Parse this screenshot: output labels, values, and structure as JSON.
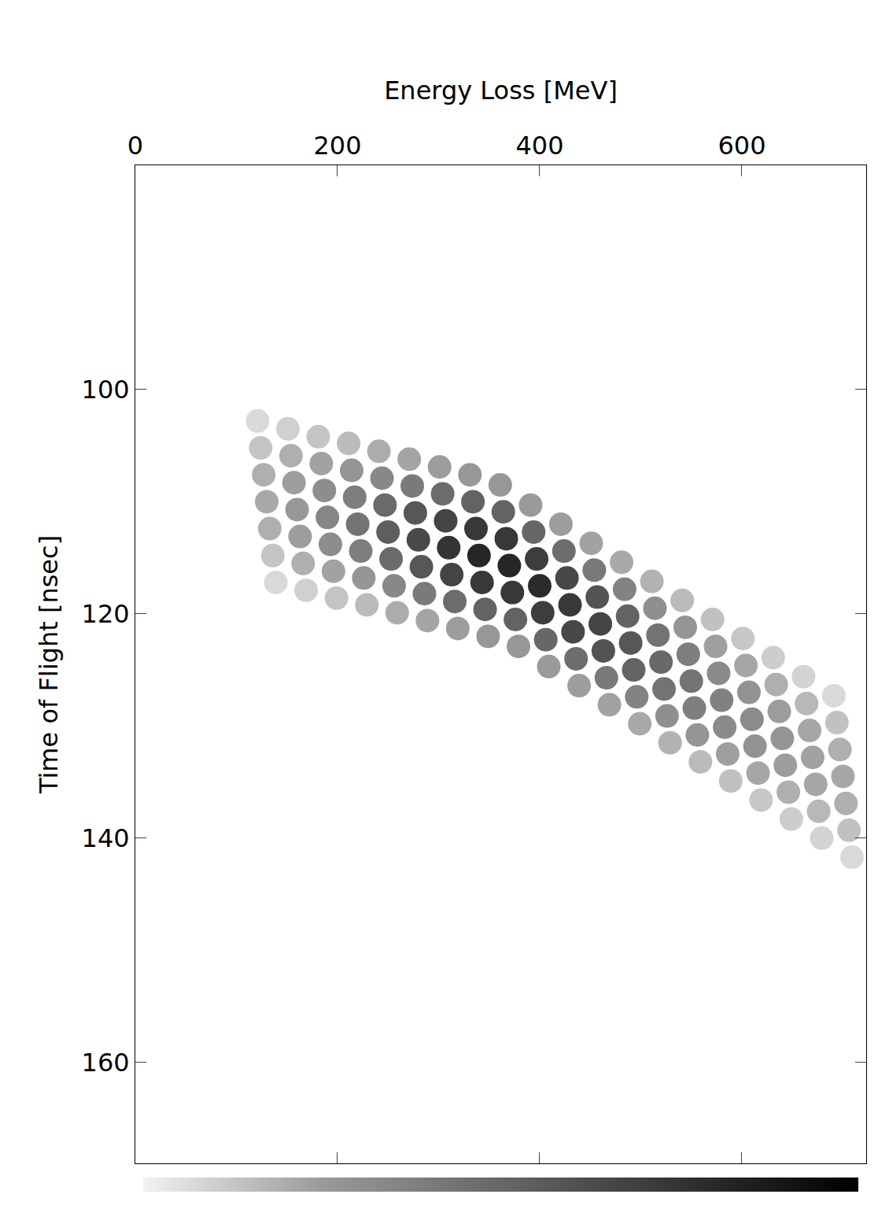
{
  "chart_data": {
    "type": "scatter",
    "x_label": "Energy Loss [MeV]",
    "y_label": "Time of Flight [nsec]",
    "x": [
      121,
      124,
      127,
      130,
      133,
      136,
      139,
      151,
      154,
      157,
      160,
      163,
      166,
      169,
      181,
      184,
      187,
      190,
      193,
      196,
      199,
      211,
      214,
      217,
      220,
      223,
      226,
      229,
      241,
      244,
      247,
      250,
      253,
      256,
      259,
      271,
      274,
      277,
      280,
      283,
      286,
      289,
      301,
      304,
      307,
      310,
      313,
      316,
      319,
      331,
      334,
      337,
      340,
      343,
      346,
      349,
      361,
      364,
      367,
      370,
      373,
      376,
      379,
      391,
      394,
      397,
      400,
      403,
      406,
      409,
      421,
      424,
      427,
      430,
      433,
      436,
      439,
      451,
      454,
      457,
      460,
      463,
      466,
      469,
      481,
      484,
      487,
      490,
      493,
      496,
      499,
      511,
      514,
      517,
      520,
      523,
      526,
      529,
      541,
      544,
      547,
      550,
      553,
      556,
      559,
      571,
      574,
      577,
      580,
      583,
      586,
      589,
      601,
      604,
      607,
      610,
      613,
      616,
      619,
      631,
      634,
      637,
      640,
      643,
      646,
      649,
      661,
      664,
      667,
      670,
      673,
      676,
      679,
      691,
      694,
      697,
      700,
      703,
      706,
      709
    ],
    "y": [
      102.8,
      105.2,
      107.6,
      110.0,
      112.4,
      114.8,
      117.2,
      103.5,
      105.9,
      108.3,
      110.7,
      113.1,
      115.5,
      117.9,
      104.2,
      106.6,
      109.0,
      111.4,
      113.8,
      116.2,
      118.6,
      104.8,
      107.2,
      109.6,
      112.0,
      114.4,
      116.8,
      119.2,
      105.5,
      107.9,
      110.3,
      112.7,
      115.1,
      117.5,
      119.9,
      106.2,
      108.6,
      111.0,
      113.4,
      115.8,
      118.2,
      120.6,
      106.9,
      109.3,
      111.7,
      114.1,
      116.5,
      118.9,
      121.3,
      107.6,
      110.0,
      112.4,
      114.8,
      117.2,
      119.6,
      122.0,
      108.5,
      110.9,
      113.3,
      115.7,
      118.1,
      120.5,
      122.9,
      110.3,
      112.7,
      115.1,
      117.5,
      119.9,
      122.3,
      124.7,
      112.0,
      114.4,
      116.8,
      119.2,
      121.6,
      124.0,
      126.4,
      113.7,
      116.1,
      118.5,
      120.9,
      123.3,
      125.7,
      128.1,
      115.4,
      117.8,
      120.2,
      122.6,
      125.0,
      127.4,
      129.8,
      117.1,
      119.5,
      121.9,
      124.3,
      126.7,
      129.1,
      131.5,
      118.8,
      121.2,
      123.6,
      126.0,
      128.4,
      130.8,
      133.2,
      120.5,
      122.9,
      125.3,
      127.7,
      130.1,
      132.5,
      134.9,
      122.2,
      124.6,
      127.0,
      129.4,
      131.8,
      134.2,
      136.6,
      123.9,
      126.3,
      128.7,
      131.1,
      133.5,
      135.9,
      138.3,
      125.6,
      128.0,
      130.4,
      132.8,
      135.2,
      137.6,
      140.0,
      127.3,
      129.7,
      132.1,
      134.5,
      136.9,
      139.3,
      141.7
    ],
    "counts": [
      0.9,
      1.6,
      2.3,
      2.5,
      2.3,
      1.6,
      0.9,
      1.2,
      2.3,
      3.2,
      3.5,
      3.2,
      2.3,
      1.2,
      1.6,
      2.9,
      4.1,
      4.5,
      4.1,
      2.9,
      1.6,
      1.9,
      3.6,
      5.0,
      5.5,
      5.0,
      3.6,
      1.9,
      2.4,
      4.4,
      6.1,
      6.8,
      6.1,
      4.4,
      2.4,
      2.8,
      5.2,
      7.2,
      8.0,
      7.2,
      5.2,
      2.8,
      3.2,
      6.0,
      8.3,
      9.2,
      8.3,
      6.0,
      3.2,
      3.5,
      6.5,
      9.0,
      10.0,
      9.0,
      6.5,
      3.5,
      3.5,
      6.5,
      9.0,
      10.0,
      9.0,
      6.5,
      3.5,
      3.4,
      6.3,
      8.7,
      9.7,
      8.7,
      6.3,
      3.4,
      3.2,
      5.9,
      8.1,
      9.0,
      8.1,
      5.9,
      3.2,
      2.9,
      5.3,
      7.4,
      8.2,
      7.4,
      5.3,
      2.9,
      2.5,
      4.7,
      6.5,
      7.2,
      6.5,
      4.7,
      2.5,
      2.2,
      4.0,
      5.6,
      6.2,
      5.6,
      4.0,
      2.2,
      1.9,
      3.6,
      5.0,
      5.5,
      5.0,
      3.6,
      1.9,
      1.7,
      3.1,
      4.3,
      4.8,
      4.3,
      3.1,
      1.7,
      1.5,
      2.7,
      3.8,
      4.2,
      3.8,
      2.7,
      1.5,
      1.3,
      2.3,
      3.2,
      3.6,
      3.2,
      2.3,
      1.3,
      1.1,
      2.0,
      2.7,
      3.0,
      2.7,
      2.0,
      1.1,
      0.9,
      1.7,
      2.3,
      2.6,
      2.3,
      1.7,
      0.9
    ],
    "zlim": [
      0,
      10
    ],
    "xlim": [
      0,
      723
    ],
    "ylim": [
      80,
      169
    ],
    "xticks": [
      0,
      200,
      400,
      600
    ],
    "yticks": [
      100,
      120,
      140,
      160
    ],
    "grid": false,
    "marker": "circle",
    "color": "#000000"
  }
}
